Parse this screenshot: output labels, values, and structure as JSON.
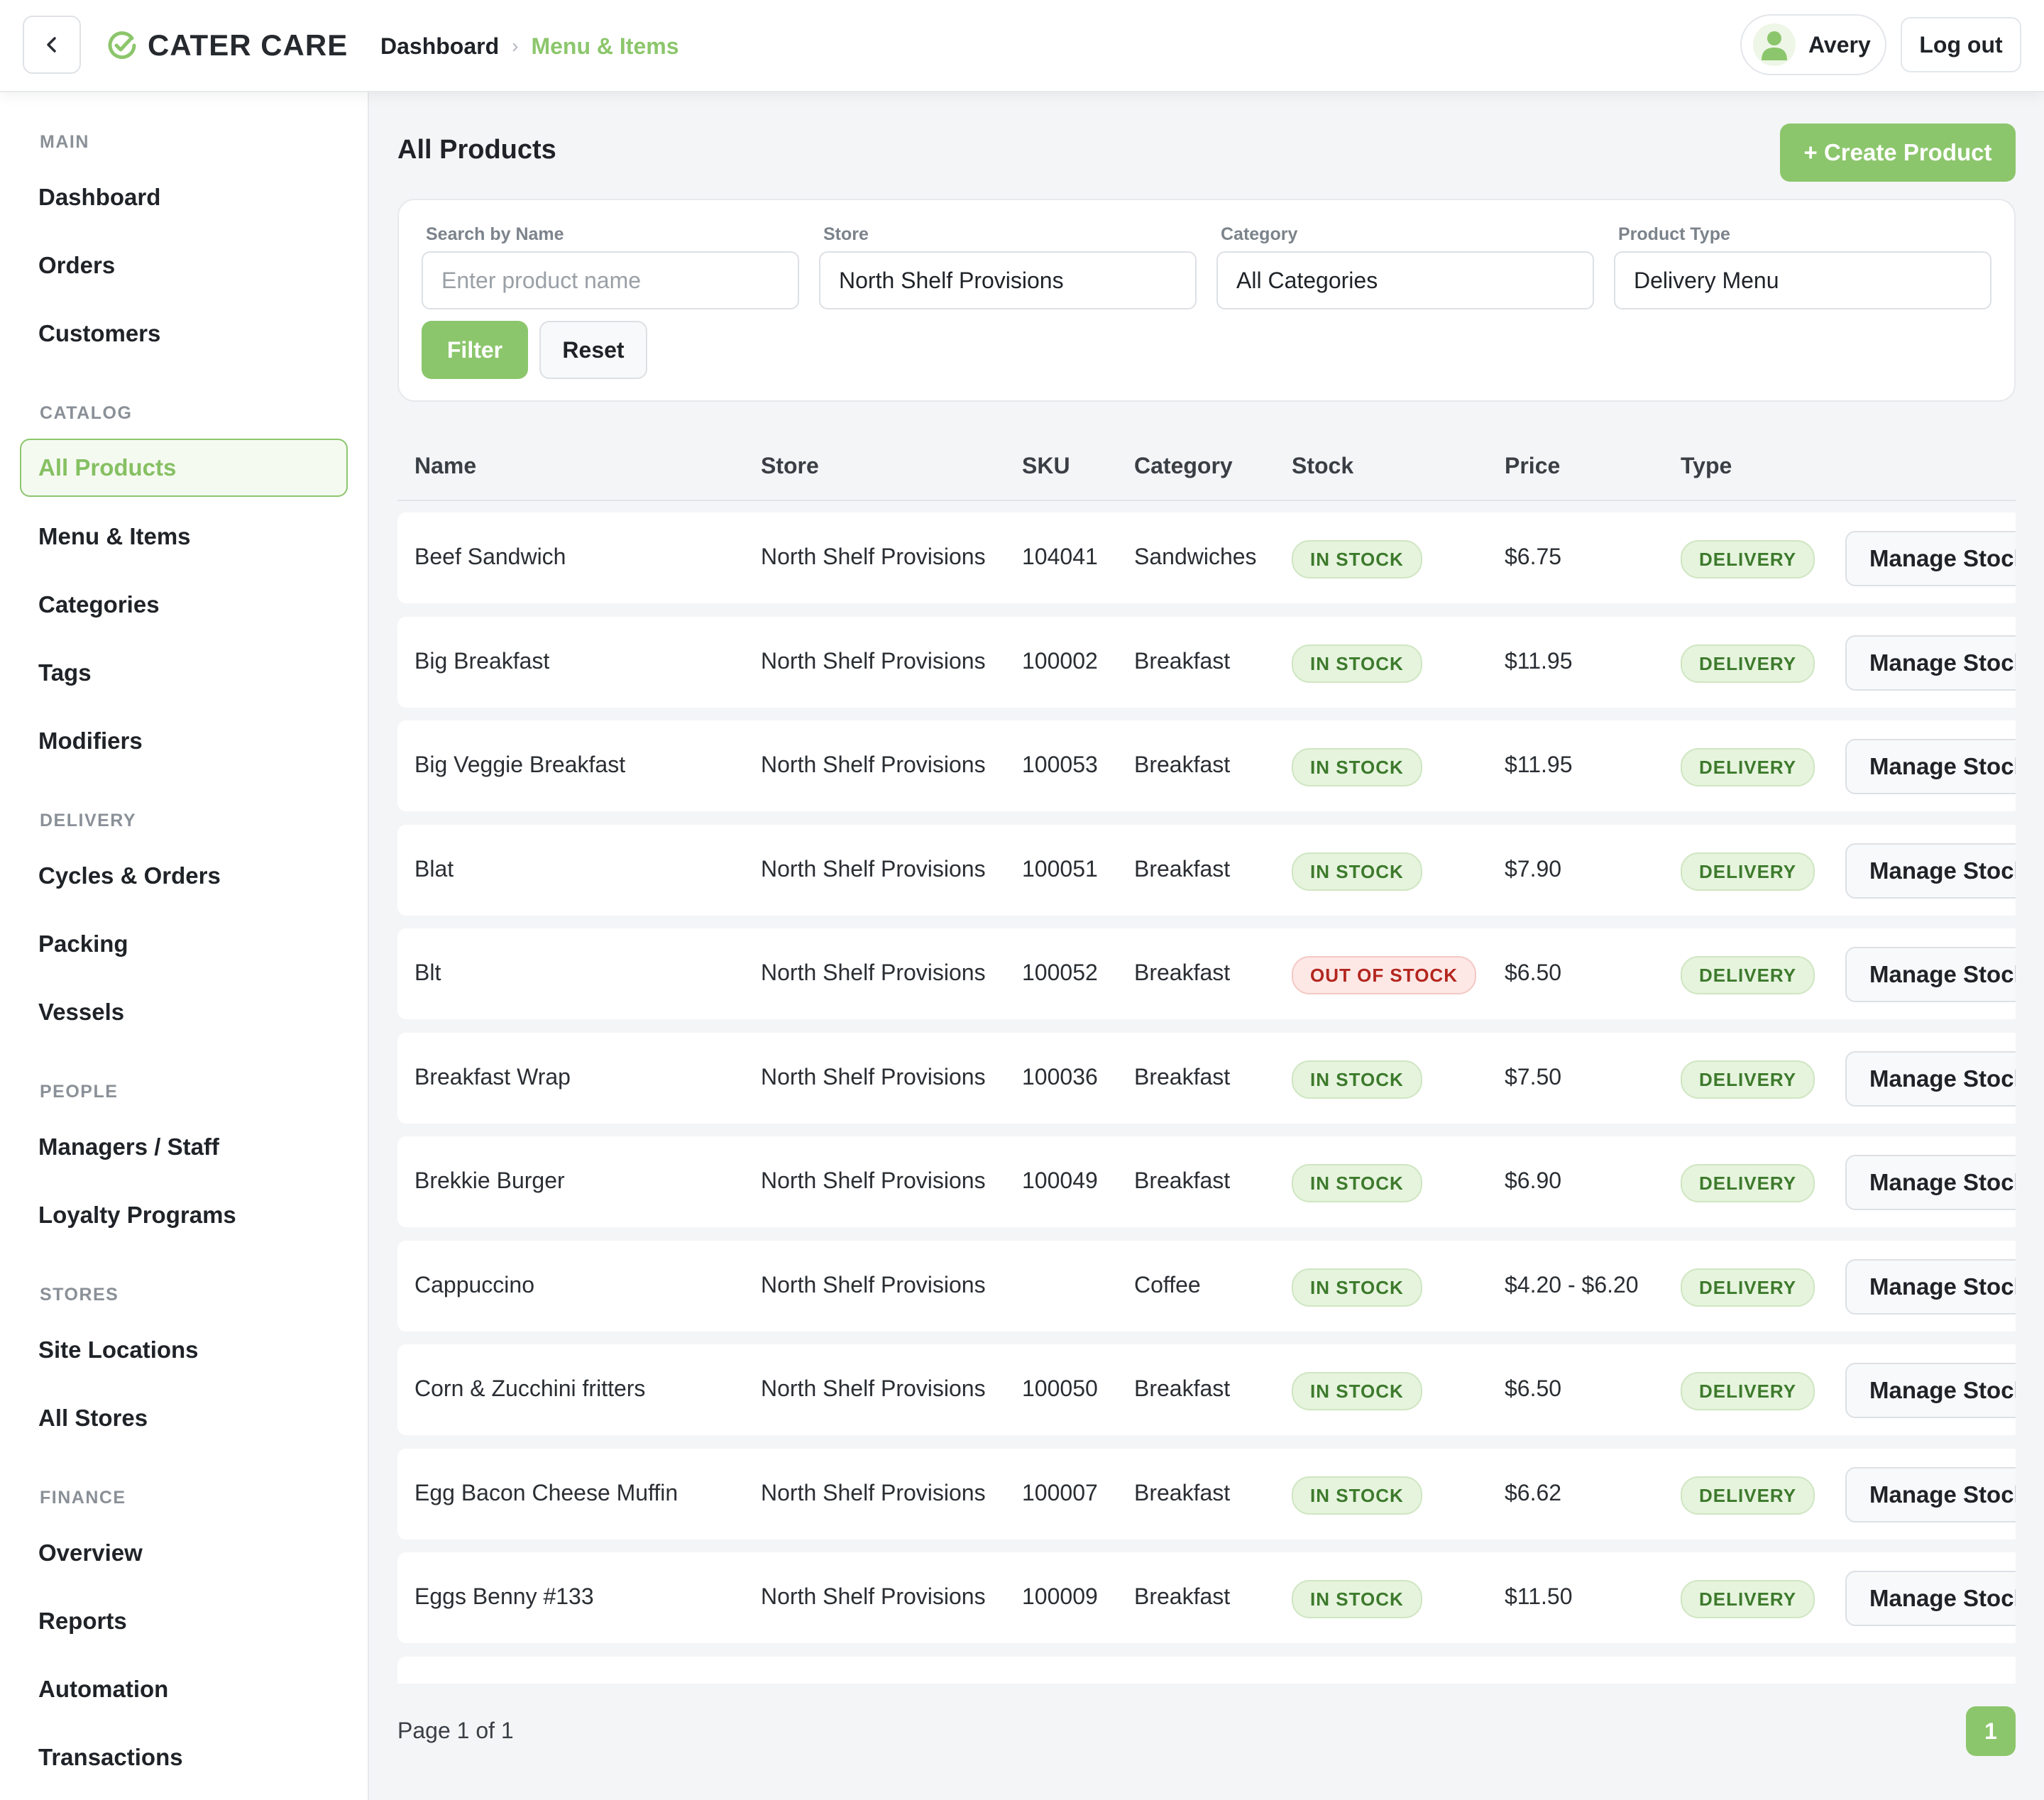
{
  "brand": {
    "name": "CATER CARE",
    "accent": "#8cc66c"
  },
  "breadcrumb": {
    "parent": "Dashboard",
    "current": "Menu & Items"
  },
  "user": {
    "name": "Avery",
    "logout_label": "Log out"
  },
  "sidebar": {
    "sections": [
      {
        "label": "MAIN",
        "items": [
          "Dashboard",
          "Orders",
          "Customers"
        ]
      },
      {
        "label": "CATALOG",
        "items": [
          "All Products",
          "Menu & Items",
          "Categories",
          "Tags",
          "Modifiers"
        ]
      },
      {
        "label": "DELIVERY",
        "items": [
          "Cycles & Orders",
          "Packing",
          "Vessels"
        ]
      },
      {
        "label": "PEOPLE",
        "items": [
          "Managers / Staff",
          "Loyalty Programs"
        ]
      },
      {
        "label": "STORES",
        "items": [
          "Site Locations",
          "All Stores"
        ]
      },
      {
        "label": "FINANCE",
        "items": [
          "Overview",
          "Reports",
          "Automation",
          "Transactions"
        ]
      }
    ],
    "active_item": "All Products"
  },
  "page": {
    "title": "All Products",
    "create_label": "+ Create Product"
  },
  "filters": {
    "search": {
      "label": "Search by Name",
      "placeholder": "Enter product name",
      "value": ""
    },
    "store": {
      "label": "Store",
      "value": "North Shelf Provisions"
    },
    "category": {
      "label": "Category",
      "value": "All Categories"
    },
    "product_type": {
      "label": "Product Type",
      "value": "Delivery Menu"
    },
    "filter_label": "Filter",
    "reset_label": "Reset"
  },
  "table": {
    "columns": [
      "Name",
      "Store",
      "SKU",
      "Category",
      "Stock",
      "Price",
      "Type"
    ],
    "action_label": "Manage Stock",
    "rows": [
      {
        "name": "Beef Sandwich",
        "store": "North Shelf Provisions",
        "sku": "104041",
        "category": "Sandwiches",
        "stock": "IN STOCK",
        "price": "$6.75",
        "type": "DELIVERY"
      },
      {
        "name": "Big Breakfast",
        "store": "North Shelf Provisions",
        "sku": "100002",
        "category": "Breakfast",
        "stock": "IN STOCK",
        "price": "$11.95",
        "type": "DELIVERY"
      },
      {
        "name": "Big Veggie Breakfast",
        "store": "North Shelf Provisions",
        "sku": "100053",
        "category": "Breakfast",
        "stock": "IN STOCK",
        "price": "$11.95",
        "type": "DELIVERY"
      },
      {
        "name": "Blat",
        "store": "North Shelf Provisions",
        "sku": "100051",
        "category": "Breakfast",
        "stock": "IN STOCK",
        "price": "$7.90",
        "type": "DELIVERY"
      },
      {
        "name": "Blt",
        "store": "North Shelf Provisions",
        "sku": "100052",
        "category": "Breakfast",
        "stock": "OUT OF STOCK",
        "price": "$6.50",
        "type": "DELIVERY"
      },
      {
        "name": "Breakfast Wrap",
        "store": "North Shelf Provisions",
        "sku": "100036",
        "category": "Breakfast",
        "stock": "IN STOCK",
        "price": "$7.50",
        "type": "DELIVERY"
      },
      {
        "name": "Brekkie Burger",
        "store": "North Shelf Provisions",
        "sku": "100049",
        "category": "Breakfast",
        "stock": "IN STOCK",
        "price": "$6.90",
        "type": "DELIVERY"
      },
      {
        "name": "Cappuccino",
        "store": "North Shelf Provisions",
        "sku": "",
        "category": "Coffee",
        "stock": "IN STOCK",
        "price": "$4.20 - $6.20",
        "type": "DELIVERY"
      },
      {
        "name": "Corn & Zucchini fritters",
        "store": "North Shelf Provisions",
        "sku": "100050",
        "category": "Breakfast",
        "stock": "IN STOCK",
        "price": "$6.50",
        "type": "DELIVERY"
      },
      {
        "name": "Egg Bacon Cheese Muffin",
        "store": "North Shelf Provisions",
        "sku": "100007",
        "category": "Breakfast",
        "stock": "IN STOCK",
        "price": "$6.62",
        "type": "DELIVERY"
      },
      {
        "name": "Eggs Benny #133",
        "store": "North Shelf Provisions",
        "sku": "100009",
        "category": "Breakfast",
        "stock": "IN STOCK",
        "price": "$11.50",
        "type": "DELIVERY"
      }
    ]
  },
  "pagination": {
    "summary": "Page 1 of 1",
    "current_page": "1"
  },
  "icons": {
    "back": "chevron-left-icon",
    "logo": "check-circle-icon",
    "breadcrumb_sep": "chevron-right-icon",
    "user": "user-avatar-icon"
  }
}
